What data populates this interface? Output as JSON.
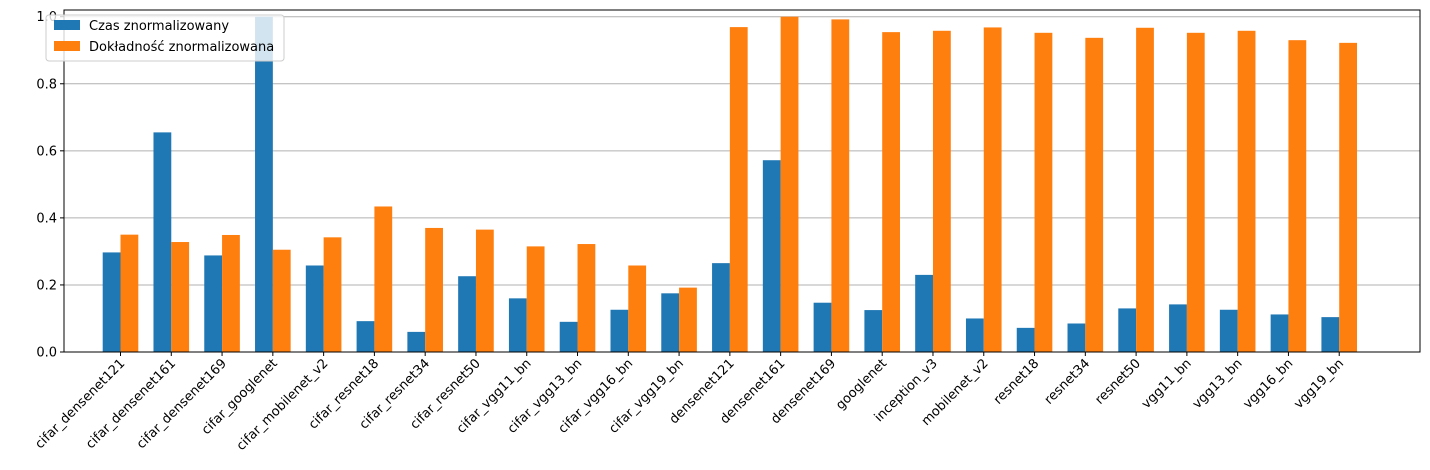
{
  "chart_data": {
    "type": "bar",
    "title": "",
    "xlabel": "",
    "ylabel": "",
    "ylim": [
      0,
      1.02
    ],
    "yticks": [
      "0.0",
      "0.2",
      "0.4",
      "0.6",
      "0.8",
      "1.0"
    ],
    "grid": "horizontal",
    "legend_position": "top-left",
    "categories": [
      "cifar_densenet121",
      "cifar_densenet161",
      "cifar_densenet169",
      "cifar_googlenet",
      "cifar_mobilenet_v2",
      "cifar_resnet18",
      "cifar_resnet34",
      "cifar_resnet50",
      "cifar_vgg11_bn",
      "cifar_vgg13_bn",
      "cifar_vgg16_bn",
      "cifar_vgg19_bn",
      "densenet121",
      "densenet161",
      "densenet169",
      "googlenet",
      "inception_v3",
      "mobilenet_v2",
      "resnet18",
      "resnet34",
      "resnet50",
      "vgg11_bn",
      "vgg13_bn",
      "vgg16_bn",
      "vgg19_bn"
    ],
    "series": [
      {
        "name": "Czas znormalizowany",
        "color": "#1f77b4",
        "values": [
          0.297,
          0.655,
          0.288,
          1.0,
          0.258,
          0.092,
          0.06,
          0.226,
          0.16,
          0.09,
          0.126,
          0.175,
          0.265,
          0.572,
          0.147,
          0.125,
          0.23,
          0.1,
          0.072,
          0.085,
          0.13,
          0.142,
          0.126,
          0.112,
          0.104
        ]
      },
      {
        "name": "Dokładność znormalizowana",
        "color": "#ff7f0e",
        "values": [
          0.35,
          0.328,
          0.349,
          0.305,
          0.342,
          0.434,
          0.37,
          0.365,
          0.315,
          0.322,
          0.258,
          0.192,
          0.969,
          1.0,
          0.992,
          0.954,
          0.958,
          0.968,
          0.952,
          0.937,
          0.967,
          0.952,
          0.958,
          0.93,
          0.922
        ]
      }
    ]
  }
}
